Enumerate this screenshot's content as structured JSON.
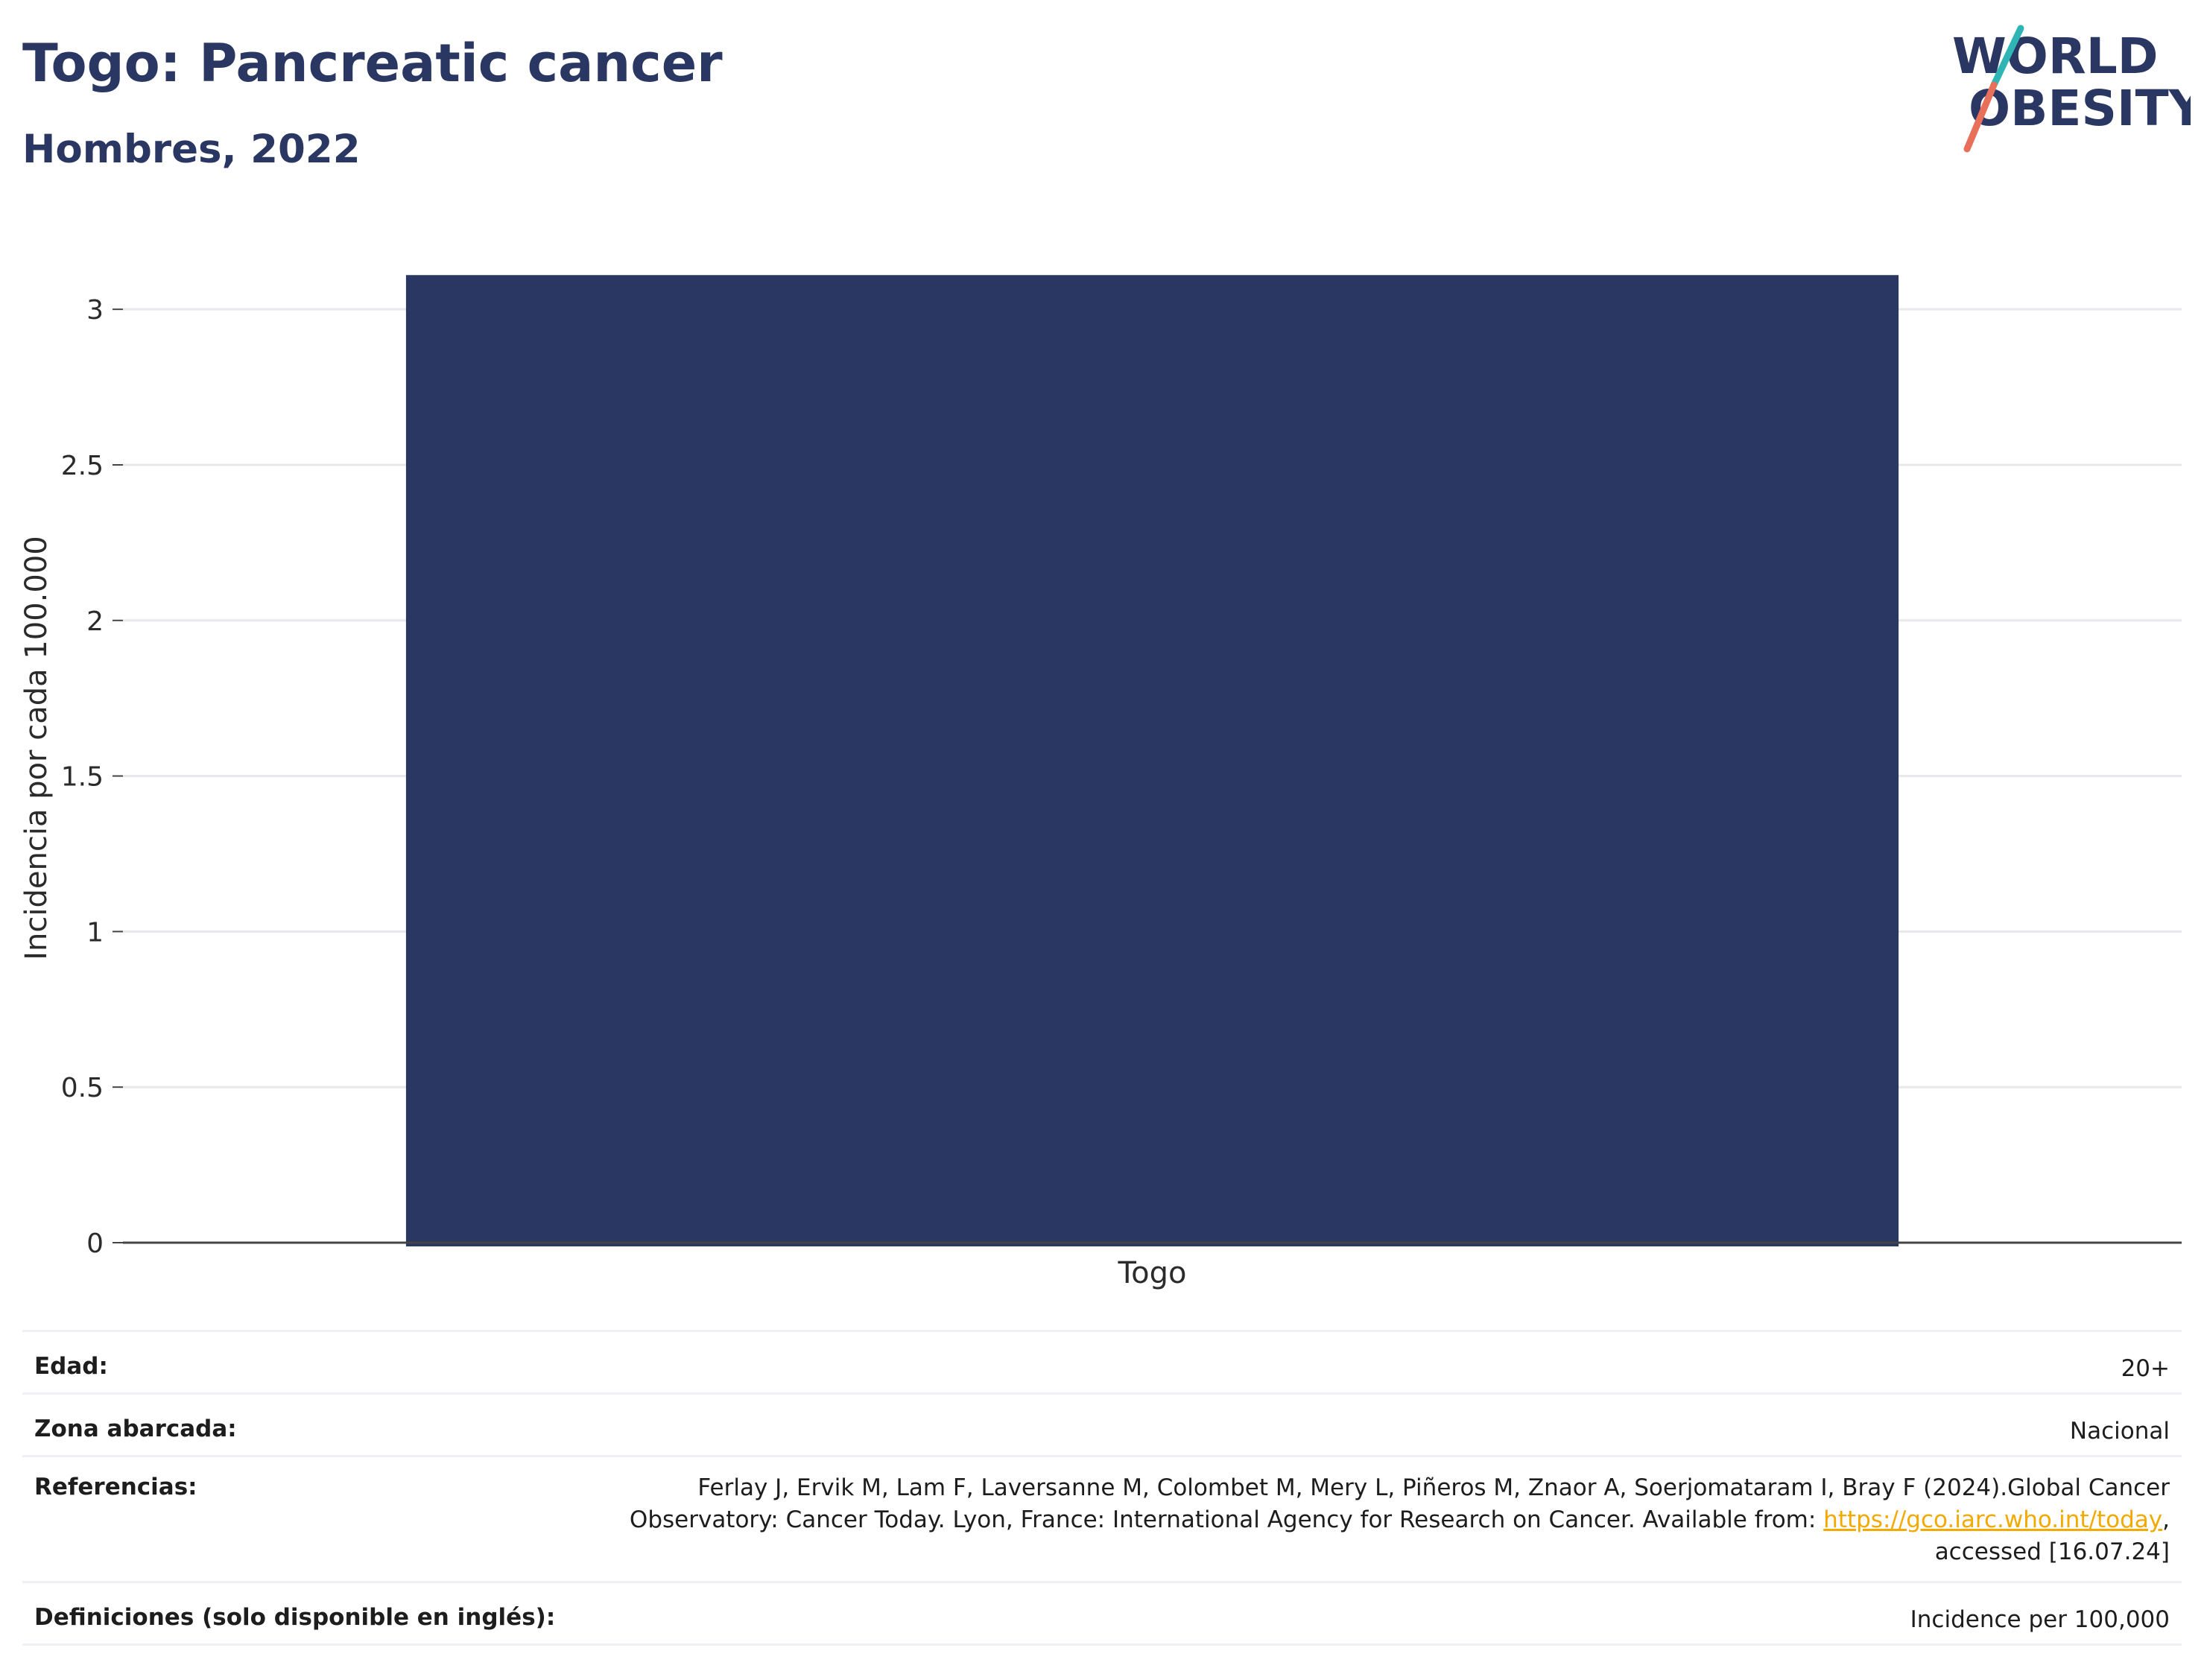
{
  "header": {
    "title": "Togo: Pancreatic cancer",
    "subtitle": "Hombres, 2022"
  },
  "logo": {
    "line1": "WORLD",
    "line2": "OBESITY",
    "colors": {
      "text": "#2a3763",
      "slash_teal": "#2fb5b5",
      "slash_coral": "#e8705a"
    }
  },
  "chart_data": {
    "type": "bar",
    "categories": [
      "Togo"
    ],
    "values": [
      3.11
    ],
    "title": "Togo: Pancreatic cancer",
    "subtitle": "Hombres, 2022",
    "xlabel": "",
    "ylabel": "Incidencia por cada 100.000",
    "ylim": [
      0,
      3.18
    ],
    "yticks": [
      0,
      0.5,
      1,
      1.5,
      2,
      2.5,
      3
    ],
    "ytick_labels": [
      "0",
      "0.5",
      "1",
      "1.5",
      "2",
      "2.5",
      "3"
    ],
    "grid": true,
    "legend": "none",
    "bar_color": "#2a3763"
  },
  "meta": {
    "age": {
      "label": "Edad:",
      "value": "20+"
    },
    "area": {
      "label": "Zona abarcada:",
      "value": "Nacional"
    },
    "references": {
      "label": "Referencias:",
      "line1": "Ferlay J, Ervik M, Lam F, Laversanne M, Colombet M, Mery L, Piñeros M, Znaor A, Soerjomataram I, Bray F (2024).Global Cancer",
      "line2_pre": "Observatory: Cancer Today. Lyon, France: International Agency for Research on Cancer. Available from: ",
      "link": "https://gco.iarc.who.int/today",
      "line2_post": ",",
      "line3": "accessed [16.07.24]"
    },
    "definitions": {
      "label": "Definiciones (solo disponible en inglés):",
      "value": "Incidence per 100,000"
    }
  }
}
